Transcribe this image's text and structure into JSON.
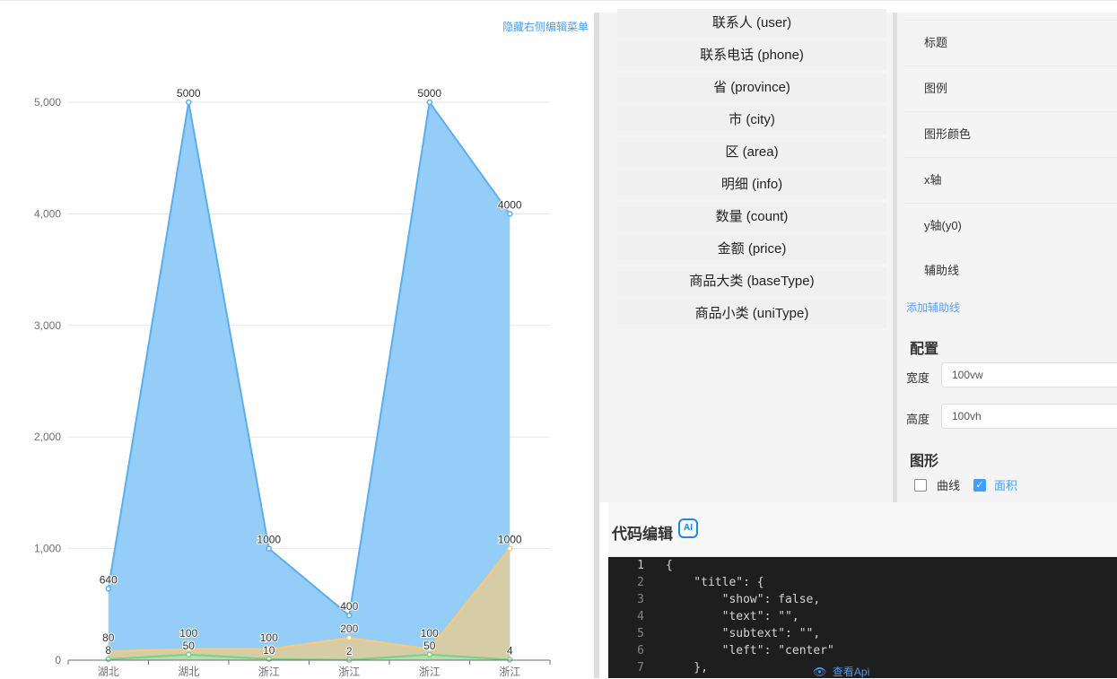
{
  "header": {
    "hide_menu_label": "隐藏右侧编辑菜单"
  },
  "fields": [
    "联系人 (user)",
    "联系电话 (phone)",
    "省 (province)",
    "市 (city)",
    "区 (area)",
    "明细 (info)",
    "数量 (count)",
    "金额 (price)",
    "商品大类 (baseType)",
    "商品小类 (uniType)"
  ],
  "config_rows": [
    "标题",
    "图例",
    "图形颜色",
    "x轴",
    "y轴(y0)",
    "辅助线"
  ],
  "add_aux_line": "添加辅助线",
  "config": {
    "title": "配置",
    "width_label": "宽度",
    "width_value": "100vw",
    "height_label": "高度",
    "height_value": "100vh"
  },
  "shape": {
    "title": "图形",
    "curve_label": "曲线",
    "curve_checked": false,
    "area_label": "面积",
    "area_checked": true
  },
  "code": {
    "title": "代码编辑",
    "ai_icon": "AI",
    "api_link": "查看Api",
    "lines": [
      "{",
      "    \"title\": {",
      "        \"show\": false,",
      "        \"text\": \"\",",
      "        \"subtext\": \"\",",
      "        \"left\": \"center\"",
      "    },"
    ]
  },
  "chart_data": {
    "type": "area",
    "categories": [
      "湖北",
      "湖北",
      "浙江",
      "浙江",
      "浙江",
      "浙江"
    ],
    "ylim": [
      0,
      5000
    ],
    "yticks": [
      0,
      1000,
      2000,
      3000,
      4000,
      5000
    ],
    "ytick_labels": [
      "0",
      "1,000",
      "2,000",
      "3,000",
      "4,000",
      "5,000"
    ],
    "grid": true,
    "series": [
      {
        "values": [
          640,
          5000,
          1000,
          400,
          5000,
          4000
        ],
        "color": "#5aaef0",
        "fill": "#94cdf7"
      },
      {
        "values": [
          80,
          100,
          100,
          200,
          100,
          1000
        ],
        "color": "#f9c97a",
        "fill": "#d9cca2"
      },
      {
        "values": [
          8,
          50,
          10,
          2,
          50,
          4
        ],
        "color": "#73d487",
        "fill": "#b5dcb0"
      }
    ]
  }
}
